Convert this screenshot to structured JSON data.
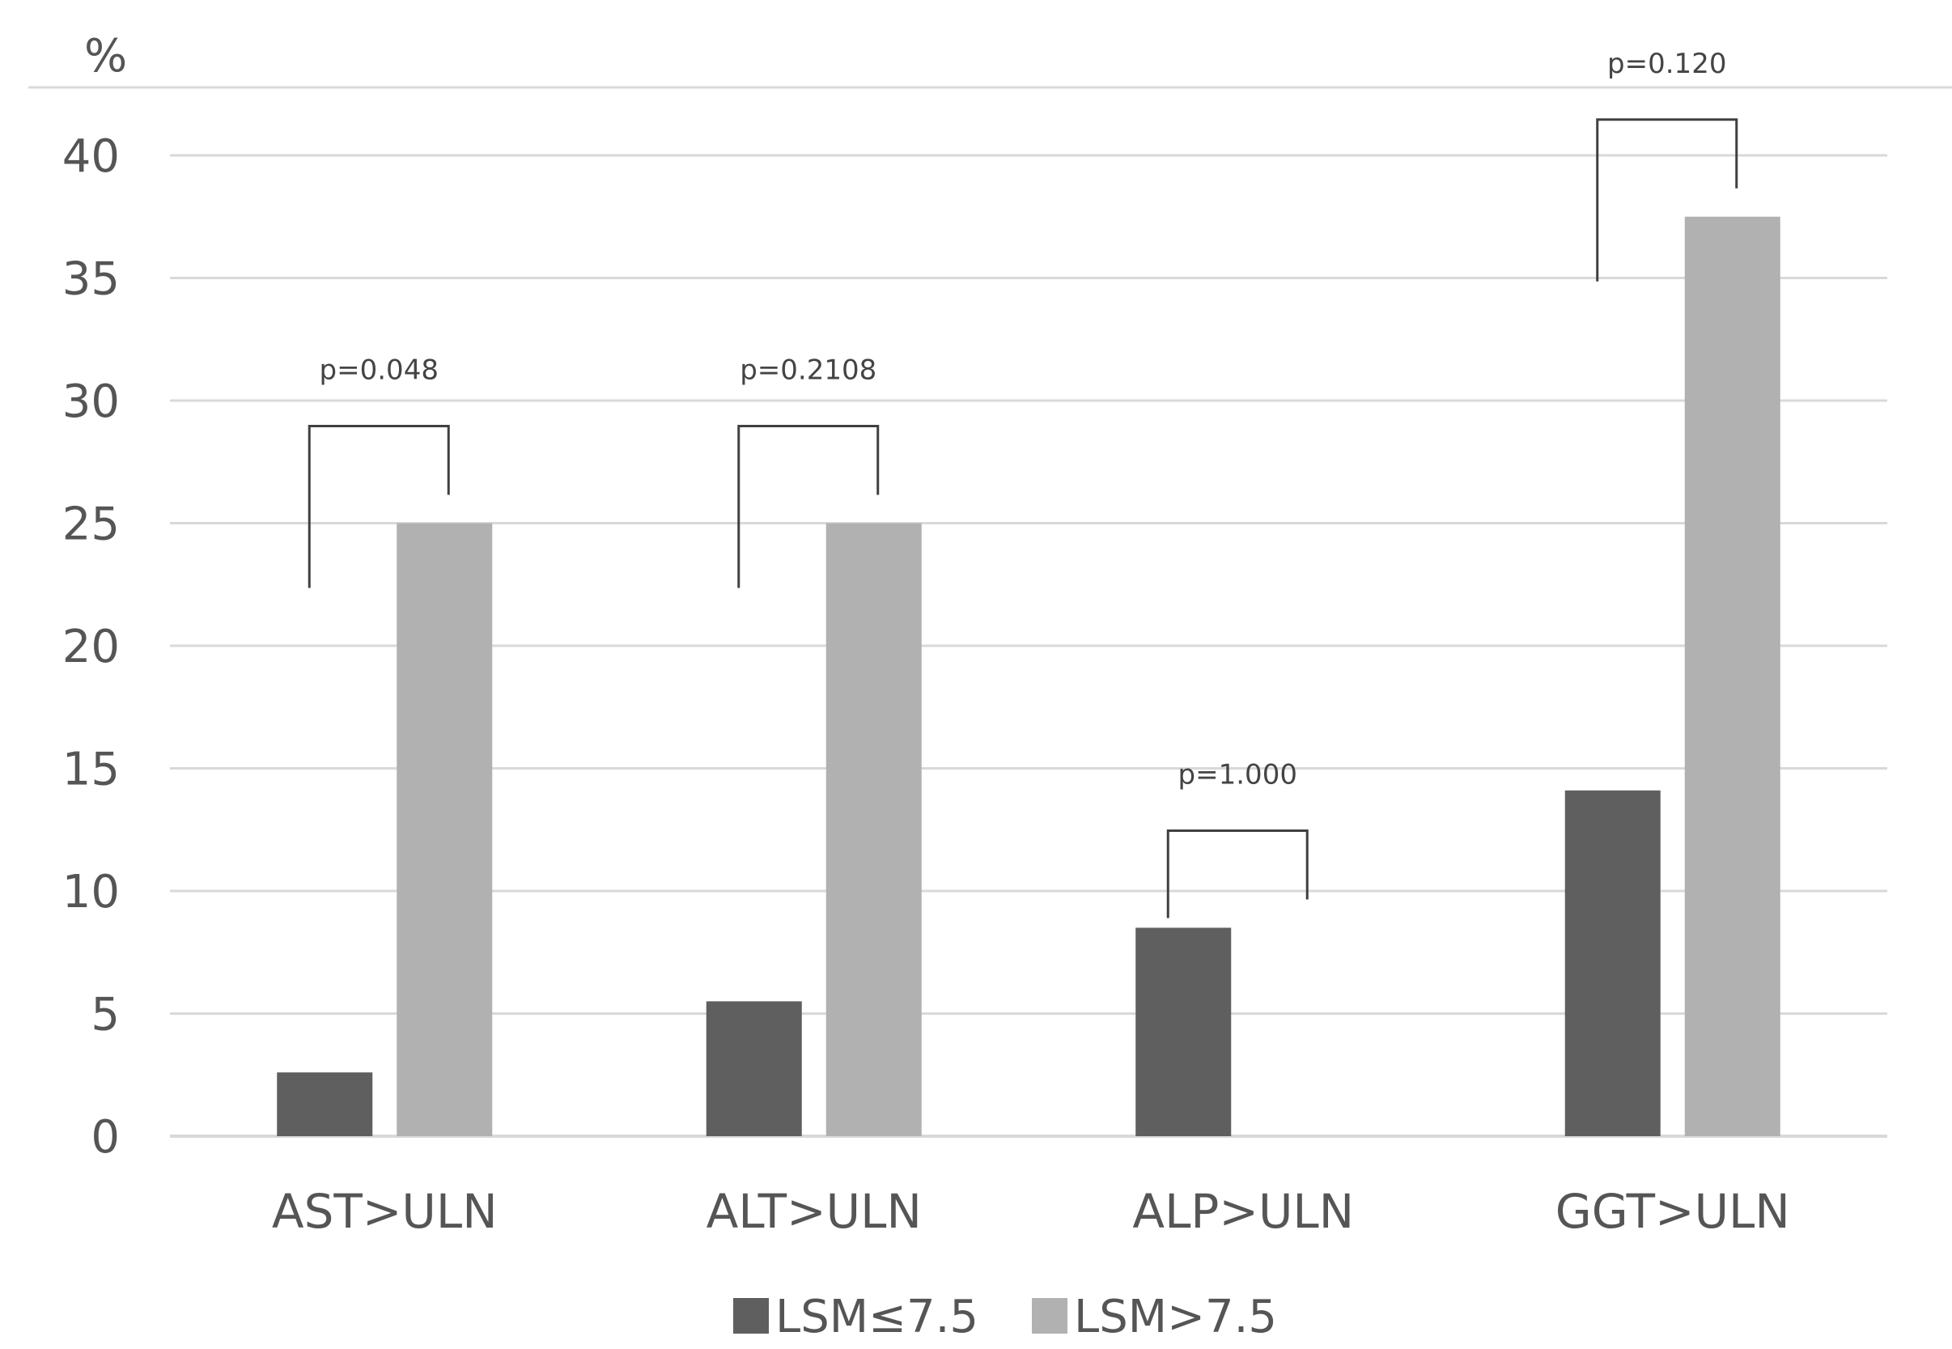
{
  "chart_data": {
    "type": "bar",
    "ylabel": "%",
    "ylim": [
      0,
      40
    ],
    "yticks": [
      0,
      5,
      10,
      15,
      20,
      25,
      30,
      35,
      40
    ],
    "grid": true,
    "legend_position": "bottom-center",
    "categories": [
      "AST>ULN",
      "ALT>ULN",
      "ALP>ULN",
      "GGT>ULN"
    ],
    "series": [
      {
        "name": "LSM≤7.5",
        "color": "#5f5f5f",
        "values": [
          2.6,
          5.5,
          8.5,
          14.1
        ]
      },
      {
        "name": "LSM>7.5",
        "color": "#b1b1b1",
        "values": [
          25.0,
          25.0,
          0,
          37.5
        ]
      }
    ],
    "annotations": [
      {
        "category": "AST>ULN",
        "text": "p=0.048"
      },
      {
        "category": "ALT>ULN",
        "text": "p=0.2108"
      },
      {
        "category": "ALP>ULN",
        "text": "p=1.000"
      },
      {
        "category": "GGT>ULN",
        "text": "p=0.120"
      }
    ]
  }
}
